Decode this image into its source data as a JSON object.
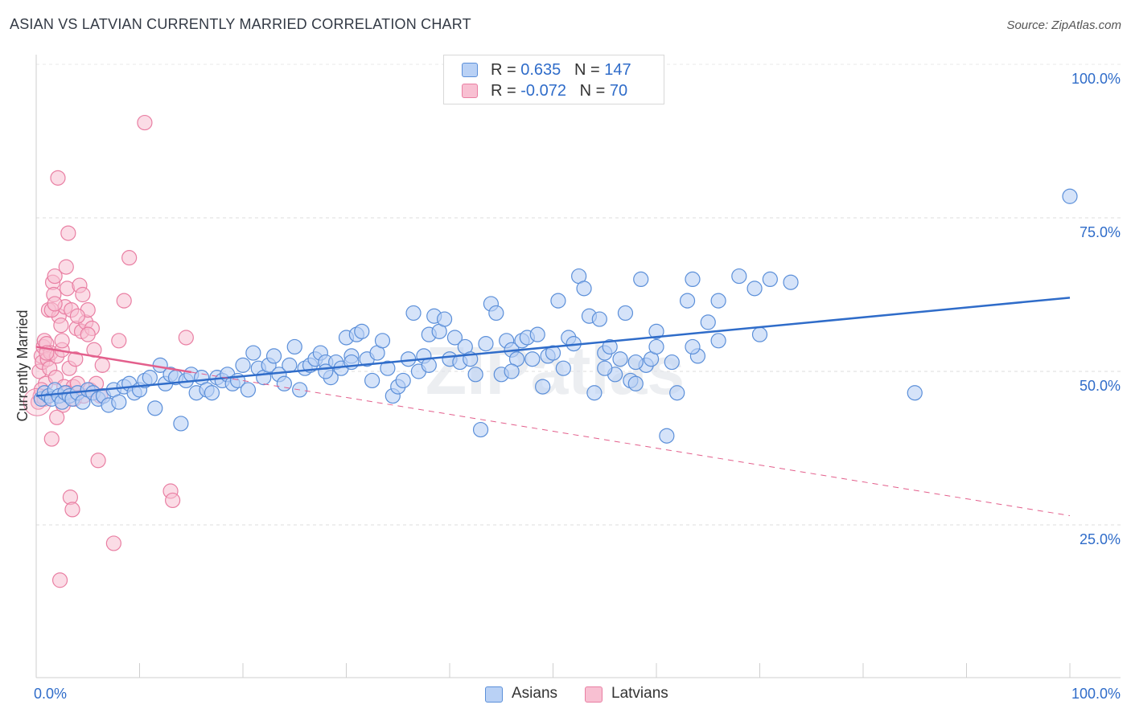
{
  "title": "ASIAN VS LATVIAN CURRENTLY MARRIED CORRELATION CHART",
  "source": "Source: ZipAtlas.com",
  "watermark": "ZIPatlas",
  "colors": {
    "asian_fill": "#b9d1f5",
    "asian_stroke": "#5b8fd9",
    "asian_line": "#2f6cc9",
    "latvian_fill": "#f8c0d2",
    "latvian_stroke": "#e97fa3",
    "latvian_line": "#e35f8c",
    "value_text": "#2f6cc9"
  },
  "legend_top": {
    "rows": [
      {
        "r_label": "R = ",
        "r_value": "0.635",
        "n_label": "N = ",
        "n_value": "147"
      },
      {
        "r_label": "R = ",
        "r_value": "-0.072",
        "n_label": "N = ",
        "n_value": "70"
      }
    ]
  },
  "legend_bottom": {
    "asians": "Asians",
    "latvians": "Latvians"
  },
  "chart_data": {
    "type": "scatter",
    "title": "ASIAN VS LATVIAN CURRENTLY MARRIED CORRELATION CHART",
    "xlabel": "",
    "ylabel": "Currently Married",
    "xlim": [
      0,
      100
    ],
    "ylim": [
      0,
      107
    ],
    "x_tick_labels": [
      "0.0%",
      "100.0%"
    ],
    "y_ticks": [
      25,
      50,
      75,
      100
    ],
    "y_tick_labels": [
      "25.0%",
      "50.0%",
      "75.0%",
      "100.0%"
    ],
    "grid": true,
    "legend_position": "top-center",
    "series": [
      {
        "name": "Asians",
        "r": 0.635,
        "n": 147,
        "trend": {
          "x": [
            0,
            100
          ],
          "y": [
            46.0,
            62.0
          ],
          "style": "solid"
        },
        "points": [
          [
            0.5,
            45.5
          ],
          [
            0.8,
            46.5
          ],
          [
            1.2,
            46.0
          ],
          [
            1.5,
            45.5
          ],
          [
            1.8,
            47.0
          ],
          [
            2.2,
            46.0
          ],
          [
            2.5,
            45.0
          ],
          [
            2.8,
            46.5
          ],
          [
            3.2,
            46.0
          ],
          [
            3.5,
            45.5
          ],
          [
            4.0,
            46.5
          ],
          [
            4.5,
            45.0
          ],
          [
            5.0,
            47.0
          ],
          [
            5.5,
            46.5
          ],
          [
            6.0,
            45.5
          ],
          [
            6.5,
            46.0
          ],
          [
            7.0,
            44.5
          ],
          [
            7.5,
            47.0
          ],
          [
            8.0,
            45.0
          ],
          [
            8.5,
            47.5
          ],
          [
            9.0,
            48.0
          ],
          [
            9.5,
            46.5
          ],
          [
            10.0,
            47.0
          ],
          [
            10.5,
            48.5
          ],
          [
            11.0,
            49.0
          ],
          [
            11.5,
            44.0
          ],
          [
            12.0,
            51.0
          ],
          [
            12.5,
            48.0
          ],
          [
            13.0,
            49.5
          ],
          [
            13.5,
            49.0
          ],
          [
            14.0,
            41.5
          ],
          [
            14.5,
            48.5
          ],
          [
            15.0,
            49.5
          ],
          [
            15.5,
            46.5
          ],
          [
            16.0,
            49.0
          ],
          [
            16.5,
            47.0
          ],
          [
            17.0,
            46.5
          ],
          [
            17.5,
            49.0
          ],
          [
            18.0,
            48.5
          ],
          [
            18.5,
            49.5
          ],
          [
            19.0,
            48.0
          ],
          [
            19.5,
            48.5
          ],
          [
            20.0,
            51.0
          ],
          [
            20.5,
            47.0
          ],
          [
            21.0,
            53.0
          ],
          [
            21.5,
            50.5
          ],
          [
            22.0,
            49.0
          ],
          [
            22.5,
            51.0
          ],
          [
            23.0,
            52.5
          ],
          [
            23.5,
            49.5
          ],
          [
            24.0,
            48.0
          ],
          [
            24.5,
            51.0
          ],
          [
            25.0,
            54.0
          ],
          [
            25.5,
            47.0
          ],
          [
            26.0,
            50.5
          ],
          [
            26.5,
            51.0
          ],
          [
            27.0,
            52.0
          ],
          [
            27.5,
            53.0
          ],
          [
            28.0,
            51.5
          ],
          [
            28.5,
            49.0
          ],
          [
            29.0,
            51.5
          ],
          [
            29.5,
            50.5
          ],
          [
            30.0,
            55.5
          ],
          [
            30.5,
            52.5
          ],
          [
            31.0,
            56.0
          ],
          [
            31.5,
            56.5
          ],
          [
            32.0,
            52.0
          ],
          [
            32.5,
            48.5
          ],
          [
            33.0,
            53.0
          ],
          [
            33.5,
            55.0
          ],
          [
            34.0,
            50.5
          ],
          [
            34.5,
            46.0
          ],
          [
            35.0,
            47.5
          ],
          [
            35.5,
            48.5
          ],
          [
            36.0,
            52.0
          ],
          [
            36.5,
            59.5
          ],
          [
            37.0,
            50.0
          ],
          [
            37.5,
            52.5
          ],
          [
            38.0,
            56.0
          ],
          [
            38.5,
            59.0
          ],
          [
            39.0,
            56.5
          ],
          [
            39.5,
            58.5
          ],
          [
            40.0,
            52.0
          ],
          [
            40.5,
            55.5
          ],
          [
            41.0,
            51.5
          ],
          [
            41.5,
            54.0
          ],
          [
            42.0,
            52.0
          ],
          [
            42.5,
            49.5
          ],
          [
            43.0,
            40.5
          ],
          [
            43.5,
            54.5
          ],
          [
            44.0,
            61.0
          ],
          [
            44.5,
            59.5
          ],
          [
            45.0,
            49.5
          ],
          [
            45.5,
            55.0
          ],
          [
            46.0,
            53.5
          ],
          [
            46.5,
            52.0
          ],
          [
            47.0,
            55.0
          ],
          [
            47.5,
            55.5
          ],
          [
            48.0,
            52.0
          ],
          [
            48.5,
            56.0
          ],
          [
            49.0,
            47.5
          ],
          [
            49.5,
            52.5
          ],
          [
            50.0,
            53.0
          ],
          [
            50.5,
            61.5
          ],
          [
            51.0,
            50.5
          ],
          [
            51.5,
            55.5
          ],
          [
            52.0,
            54.5
          ],
          [
            52.5,
            65.5
          ],
          [
            53.0,
            63.5
          ],
          [
            53.5,
            59.0
          ],
          [
            54.0,
            46.5
          ],
          [
            54.5,
            58.5
          ],
          [
            55.0,
            53.0
          ],
          [
            55.5,
            54.0
          ],
          [
            56.0,
            49.5
          ],
          [
            56.5,
            52.0
          ],
          [
            57.0,
            59.5
          ],
          [
            57.5,
            48.5
          ],
          [
            58.0,
            48.0
          ],
          [
            58.5,
            65.0
          ],
          [
            59.0,
            51.0
          ],
          [
            59.5,
            52.0
          ],
          [
            60.0,
            56.5
          ],
          [
            61.0,
            39.5
          ],
          [
            61.5,
            51.5
          ],
          [
            62.0,
            46.5
          ],
          [
            63.0,
            61.5
          ],
          [
            63.5,
            65.0
          ],
          [
            64.0,
            52.5
          ],
          [
            65.0,
            58.0
          ],
          [
            66.0,
            61.5
          ],
          [
            68.0,
            65.5
          ],
          [
            69.5,
            63.5
          ],
          [
            71.0,
            65.0
          ],
          [
            73.0,
            64.5
          ],
          [
            85.0,
            46.5
          ],
          [
            100.0,
            78.5
          ],
          [
            28.0,
            50.0
          ],
          [
            38.0,
            51.0
          ],
          [
            55.0,
            50.5
          ],
          [
            60.0,
            54.0
          ],
          [
            66.0,
            55.0
          ],
          [
            70.0,
            56.0
          ],
          [
            30.5,
            51.5
          ],
          [
            46.0,
            50.0
          ],
          [
            58.0,
            51.5
          ],
          [
            63.5,
            54.0
          ]
        ]
      },
      {
        "name": "Latvians",
        "r": -0.072,
        "n": 70,
        "trend": {
          "x": [
            0,
            100
          ],
          "y": [
            54.0,
            26.5
          ],
          "style": "solid-then-dashed",
          "solid_until_x": 15
        },
        "points": [
          [
            0.2,
            45.0
          ],
          [
            0.3,
            50.0
          ],
          [
            0.4,
            46.0
          ],
          [
            0.5,
            52.5
          ],
          [
            0.6,
            51.5
          ],
          [
            0.7,
            54.0
          ],
          [
            0.8,
            55.0
          ],
          [
            0.9,
            48.0
          ],
          [
            1.0,
            54.5
          ],
          [
            1.1,
            52.0
          ],
          [
            1.2,
            60.0
          ],
          [
            1.3,
            50.5
          ],
          [
            1.4,
            53.0
          ],
          [
            1.5,
            39.0
          ],
          [
            1.6,
            64.5
          ],
          [
            1.7,
            62.5
          ],
          [
            1.8,
            65.5
          ],
          [
            1.9,
            49.0
          ],
          [
            2.0,
            52.5
          ],
          [
            2.1,
            81.5
          ],
          [
            2.2,
            59.0
          ],
          [
            2.3,
            16.0
          ],
          [
            2.4,
            57.5
          ],
          [
            2.5,
            53.5
          ],
          [
            2.6,
            44.5
          ],
          [
            2.7,
            47.5
          ],
          [
            2.8,
            60.5
          ],
          [
            2.9,
            67.0
          ],
          [
            3.0,
            63.5
          ],
          [
            3.1,
            72.5
          ],
          [
            3.2,
            50.5
          ],
          [
            3.3,
            29.5
          ],
          [
            3.4,
            60.0
          ],
          [
            3.5,
            27.5
          ],
          [
            3.6,
            47.5
          ],
          [
            3.7,
            45.5
          ],
          [
            3.8,
            52.0
          ],
          [
            3.9,
            57.0
          ],
          [
            4.0,
            48.0
          ],
          [
            4.2,
            64.0
          ],
          [
            4.4,
            56.5
          ],
          [
            4.6,
            46.0
          ],
          [
            4.8,
            58.0
          ],
          [
            5.0,
            60.0
          ],
          [
            5.2,
            47.0
          ],
          [
            5.4,
            57.0
          ],
          [
            5.6,
            53.5
          ],
          [
            5.8,
            48.0
          ],
          [
            6.0,
            35.5
          ],
          [
            6.2,
            46.0
          ],
          [
            6.4,
            51.0
          ],
          [
            7.5,
            22.0
          ],
          [
            8.0,
            55.0
          ],
          [
            8.5,
            61.5
          ],
          [
            9.0,
            68.5
          ],
          [
            10.5,
            90.5
          ],
          [
            13.0,
            30.5
          ],
          [
            13.2,
            29.0
          ],
          [
            14.5,
            55.5
          ],
          [
            0.5,
            47.0
          ],
          [
            1.0,
            53.0
          ],
          [
            1.5,
            60.0
          ],
          [
            2.0,
            42.5
          ],
          [
            2.5,
            55.0
          ],
          [
            3.0,
            46.5
          ],
          [
            4.0,
            59.0
          ],
          [
            4.5,
            62.5
          ],
          [
            5.0,
            56.0
          ],
          [
            0.8,
            45.5
          ],
          [
            1.8,
            61.0
          ]
        ]
      }
    ]
  }
}
